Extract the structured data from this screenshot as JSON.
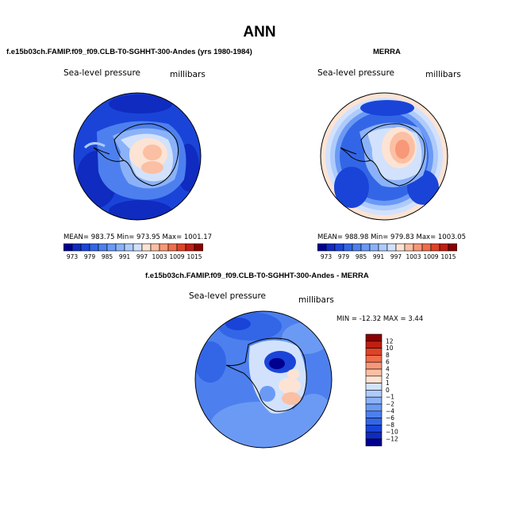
{
  "title": "ANN",
  "palette": {
    "full": [
      "#00008f",
      "#0f2bc0",
      "#1a44d8",
      "#3366e6",
      "#4d80ee",
      "#6b9af4",
      "#8bb2f8",
      "#aecbfb",
      "#d2e2fd",
      "#fde3d3",
      "#fbbfa3",
      "#f79878",
      "#ef6e4b",
      "#e04226",
      "#c01e12",
      "#8b0000"
    ]
  },
  "panels": [
    {
      "subtitle": "f.e15b03ch.FAMIP.f09_f09.CLB-T0-SGHHT-300-Andes (yrs 1980-1984)",
      "field_name": "Sea-level pressure",
      "units": "millibars",
      "stats": "MEAN= 983.75   Min= 973.95   Max= 1001.17",
      "colorbar_labels": [
        "973",
        "979",
        "985",
        "991",
        "997",
        "1003",
        "1009",
        "1015"
      ]
    },
    {
      "subtitle": "MERRA",
      "field_name": "Sea-level pressure",
      "units": "millibars",
      "stats": "MEAN= 988.98   Min= 979.83   Max= 1003.05",
      "colorbar_labels": [
        "973",
        "979",
        "985",
        "991",
        "997",
        "1003",
        "1009",
        "1015"
      ]
    },
    {
      "subtitle": "f.e15b03ch.FAMIP.f09_f09.CLB-T0-SGHHT-300-Andes - MERRA",
      "field_name": "Sea-level pressure",
      "units": "millibars",
      "stats": "MIN = -12.32  MAX =    3.44",
      "colorbar_labels": [
        "12",
        "10",
        "8",
        "6",
        "4",
        "2",
        "1",
        "0",
        "−1",
        "−2",
        "−4",
        "−6",
        "−8",
        "−10",
        "−12"
      ]
    }
  ],
  "chart_data": [
    {
      "type": "heatmap",
      "title": "f.e15b03ch.FAMIP.f09_f09.CLB-T0-SGHHT-300-Andes (yrs 1980-1984)",
      "variable": "Sea-level pressure",
      "units": "millibars",
      "projection": "south polar stereographic",
      "mean": 983.75,
      "min": 973.95,
      "max": 1001.17,
      "contour_levels": [
        973,
        976,
        979,
        982,
        985,
        988,
        991,
        994,
        997,
        1000,
        1003,
        1006,
        1009,
        1012,
        1015
      ]
    },
    {
      "type": "heatmap",
      "title": "MERRA",
      "variable": "Sea-level pressure",
      "units": "millibars",
      "projection": "south polar stereographic",
      "mean": 988.98,
      "min": 979.83,
      "max": 1003.05,
      "contour_levels": [
        973,
        976,
        979,
        982,
        985,
        988,
        991,
        994,
        997,
        1000,
        1003,
        1006,
        1009,
        1012,
        1015
      ]
    },
    {
      "type": "heatmap",
      "title": "f.e15b03ch.FAMIP.f09_f09.CLB-T0-SGHHT-300-Andes - MERRA",
      "variable": "Sea-level pressure",
      "units": "millibars",
      "projection": "south polar stereographic",
      "min": -12.32,
      "max": 3.44,
      "contour_levels": [
        -12,
        -10,
        -8,
        -6,
        -4,
        -2,
        -1,
        0,
        1,
        2,
        4,
        6,
        8,
        10,
        12
      ]
    }
  ]
}
